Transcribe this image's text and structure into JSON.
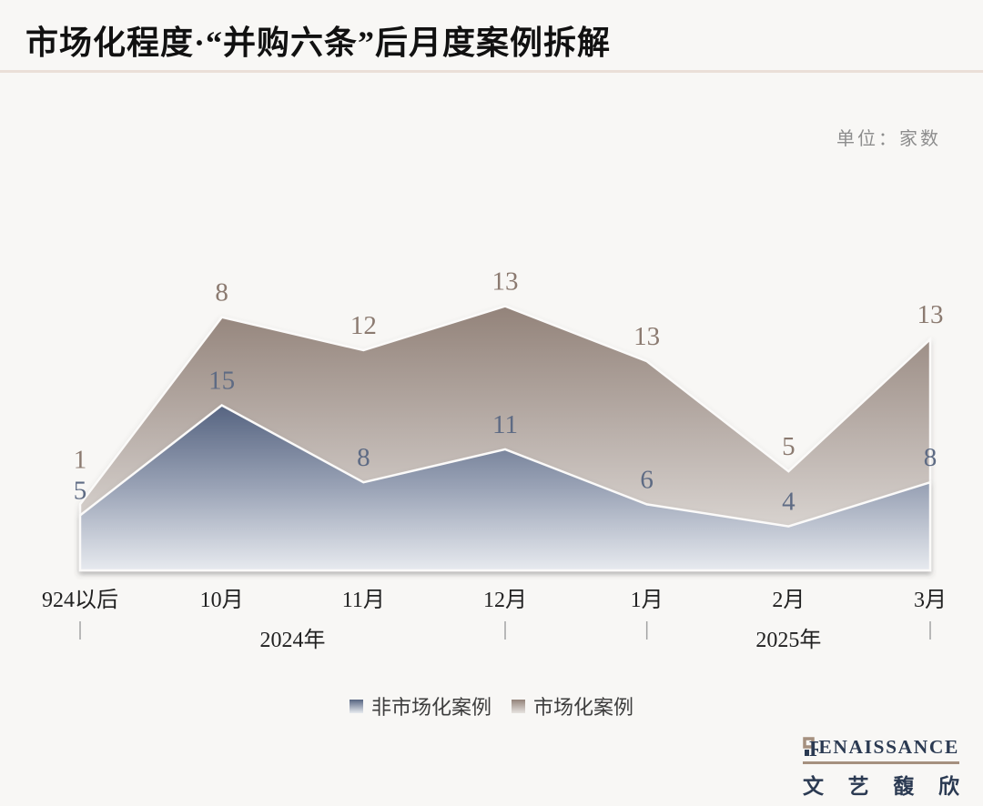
{
  "title": "市场化程度·“并购六条”后月度案例拆解",
  "unit_label": "单位：家数",
  "chart_data": {
    "type": "area",
    "stacked": true,
    "title": "市场化程度·“并购六条”后月度案例拆解",
    "unit": "家数",
    "categories": [
      "924以后",
      "10月",
      "11月",
      "12月",
      "1月",
      "2月",
      "3月"
    ],
    "series": [
      {
        "name": "非市场化案例",
        "values": [
          5,
          15,
          8,
          11,
          6,
          4,
          8
        ],
        "label_color": "#5e6b84",
        "gradient_top": "#566481",
        "gradient_mid": "#9aa3b6",
        "gradient_bottom": "#e7eaef"
      },
      {
        "name": "市场化案例",
        "values": [
          1,
          8,
          12,
          13,
          13,
          5,
          13
        ],
        "label_color": "#8b7a70",
        "gradient_top": "#93837a",
        "gradient_mid": "#c0b7b2",
        "gradient_bottom": "#e6e3e0"
      }
    ],
    "sub_axis": {
      "tick_indices": [
        0,
        3,
        4,
        6
      ],
      "year_labels": [
        {
          "label": "2024年",
          "between": [
            1,
            2
          ]
        },
        {
          "label": "2025年",
          "at": 5
        }
      ]
    },
    "ylim": [
      0,
      26
    ],
    "grid": false,
    "legend_position": "bottom",
    "data_labels": true
  },
  "branding": {
    "wordmark_initial": "R",
    "wordmark_rest": "ENAISSANCE",
    "cn_name": "文艺馥欣"
  }
}
